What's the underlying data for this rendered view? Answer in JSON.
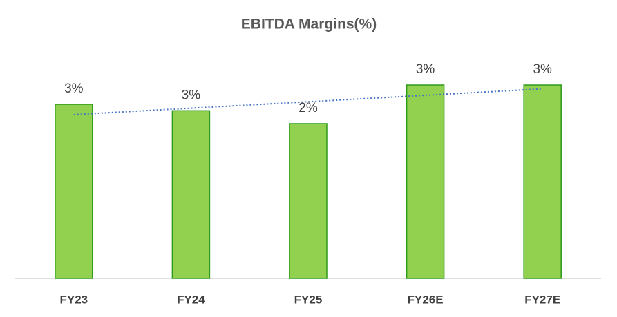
{
  "chart_data": {
    "type": "bar",
    "title": "EBITDA Margins(%)",
    "categories": [
      "FY23",
      "FY24",
      "FY25",
      "FY26E",
      "FY27E"
    ],
    "values": [
      2.7,
      2.6,
      2.4,
      3.0,
      3.0
    ],
    "value_labels": [
      "3%",
      "3%",
      "2%",
      "3%",
      "3%"
    ],
    "color": "#92d050",
    "edge_color": "#2e9a1a",
    "trendline": "linear",
    "trendline_color": "#4472c4"
  }
}
